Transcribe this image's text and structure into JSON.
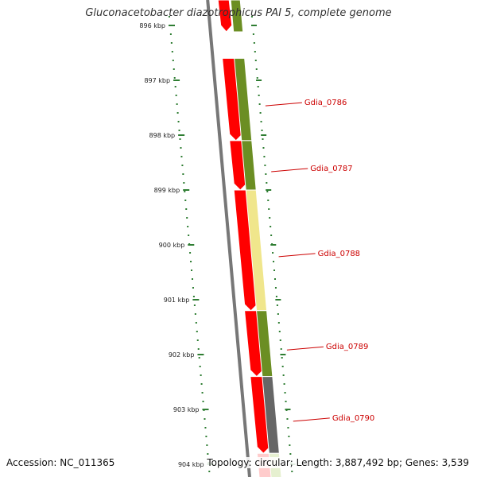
{
  "title": "Gluconacetobacter diazotrophicus PAI 5, complete genome",
  "footer": {
    "accession": "Accession: NC_011365",
    "summary": "Topology: circular; Length: 3,887,492 bp; Genes: 3,539"
  },
  "colors": {
    "backbone": "#777777",
    "cds": "#ff0000",
    "cds_edge": "#cc0000",
    "olive": "#6b8e23",
    "yellow": "#f0e68c",
    "gray": "#666666",
    "tick": "#2e7d32",
    "label": "#cc0000"
  },
  "ticks": [
    {
      "label": "896 kbp"
    },
    {
      "label": "897 kbp"
    },
    {
      "label": "898 kbp"
    },
    {
      "label": "899 kbp"
    },
    {
      "label": "900 kbp"
    },
    {
      "label": "901 kbp"
    },
    {
      "label": "902 kbp"
    },
    {
      "label": "903 kbp"
    },
    {
      "label": "904 kbp"
    }
  ],
  "genes": [
    {
      "name": "Gdia_0786",
      "start_kbp": 896.6,
      "end_kbp": 898.1,
      "cog": "olive"
    },
    {
      "name": "Gdia_0787",
      "start_kbp": 898.1,
      "end_kbp": 899.0,
      "cog": "olive"
    },
    {
      "name": "Gdia_0788",
      "start_kbp": 899.0,
      "end_kbp": 901.2,
      "cog": "yellow"
    },
    {
      "name": "Gdia_0789",
      "start_kbp": 901.2,
      "end_kbp": 902.4,
      "cog": "olive"
    },
    {
      "name": "Gdia_0790",
      "start_kbp": 902.4,
      "end_kbp": 903.8,
      "cog": "gray"
    }
  ]
}
